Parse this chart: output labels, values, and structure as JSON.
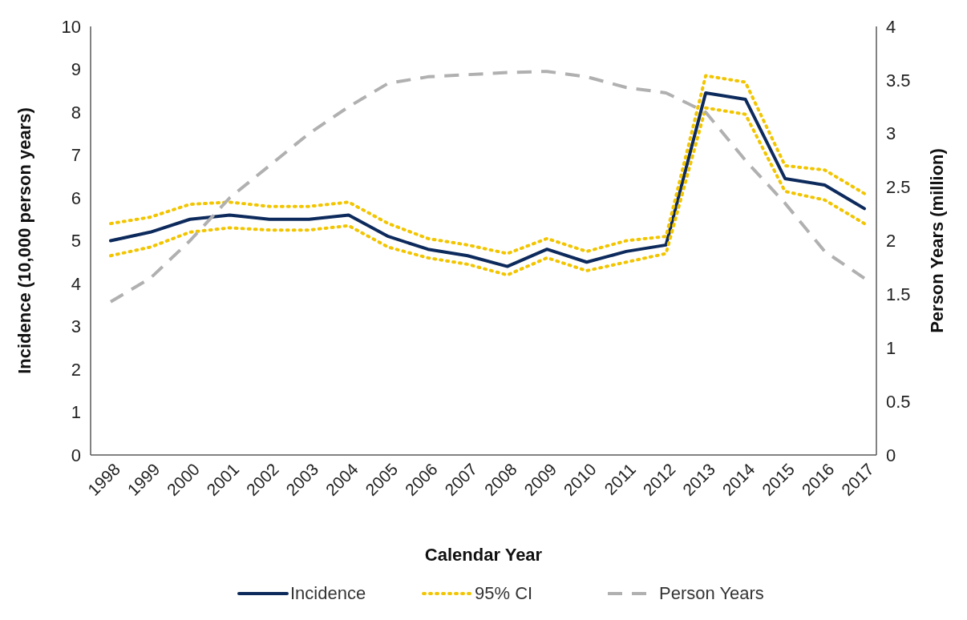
{
  "chart_data": {
    "type": "line",
    "xlabel": "Calendar Year",
    "ylabel": "Incidence (10,000 person years)",
    "y2label": "Person Years (million)",
    "categories": [
      "1998",
      "1999",
      "2000",
      "2001",
      "2002",
      "2003",
      "2004",
      "2005",
      "2006",
      "2007",
      "2008",
      "2009",
      "2010",
      "2011",
      "2012",
      "2013",
      "2014",
      "2015",
      "2016",
      "2017"
    ],
    "series": [
      {
        "name": "Incidence",
        "color": "#0d2a5c",
        "line_style": "solid",
        "values": [
          5.0,
          5.2,
          5.5,
          5.6,
          5.5,
          5.5,
          5.6,
          5.1,
          4.8,
          4.65,
          4.4,
          4.8,
          4.5,
          4.75,
          4.9,
          8.45,
          8.3,
          6.45,
          6.3,
          5.75
        ]
      },
      {
        "name": "95% CI",
        "color": "#f2c500",
        "line_style": "dotted",
        "values": [
          5.4,
          5.55,
          5.85,
          5.9,
          5.8,
          5.8,
          5.9,
          5.4,
          5.05,
          4.9,
          4.7,
          5.05,
          4.75,
          5.0,
          5.1,
          8.85,
          8.7,
          6.75,
          6.65,
          6.1
        ]
      },
      {
        "color": "#f2c500",
        "line_style": "dotted",
        "values": [
          4.65,
          4.85,
          5.2,
          5.3,
          5.25,
          5.25,
          5.35,
          4.85,
          4.6,
          4.45,
          4.2,
          4.6,
          4.3,
          4.5,
          4.7,
          8.1,
          7.95,
          6.15,
          5.95,
          5.4
        ]
      },
      {
        "name": "Person Years",
        "color": "#b0b0b0",
        "line_style": "dashed",
        "axis": "y2",
        "values": [
          1.43,
          1.65,
          2.0,
          2.4,
          2.7,
          3.0,
          3.25,
          3.47,
          3.53,
          3.55,
          3.57,
          3.58,
          3.53,
          3.43,
          3.38,
          3.2,
          2.75,
          2.35,
          1.9,
          1.65
        ]
      }
    ],
    "ylim": [
      0,
      10
    ],
    "yticks": [
      0,
      1,
      2,
      3,
      4,
      5,
      6,
      7,
      8,
      9,
      10
    ],
    "y2lim": [
      0,
      4
    ],
    "y2ticks": [
      0,
      0.5,
      1,
      1.5,
      2,
      2.5,
      3,
      3.5,
      4
    ],
    "grid": false,
    "legend": "bottom",
    "marker": "none"
  }
}
